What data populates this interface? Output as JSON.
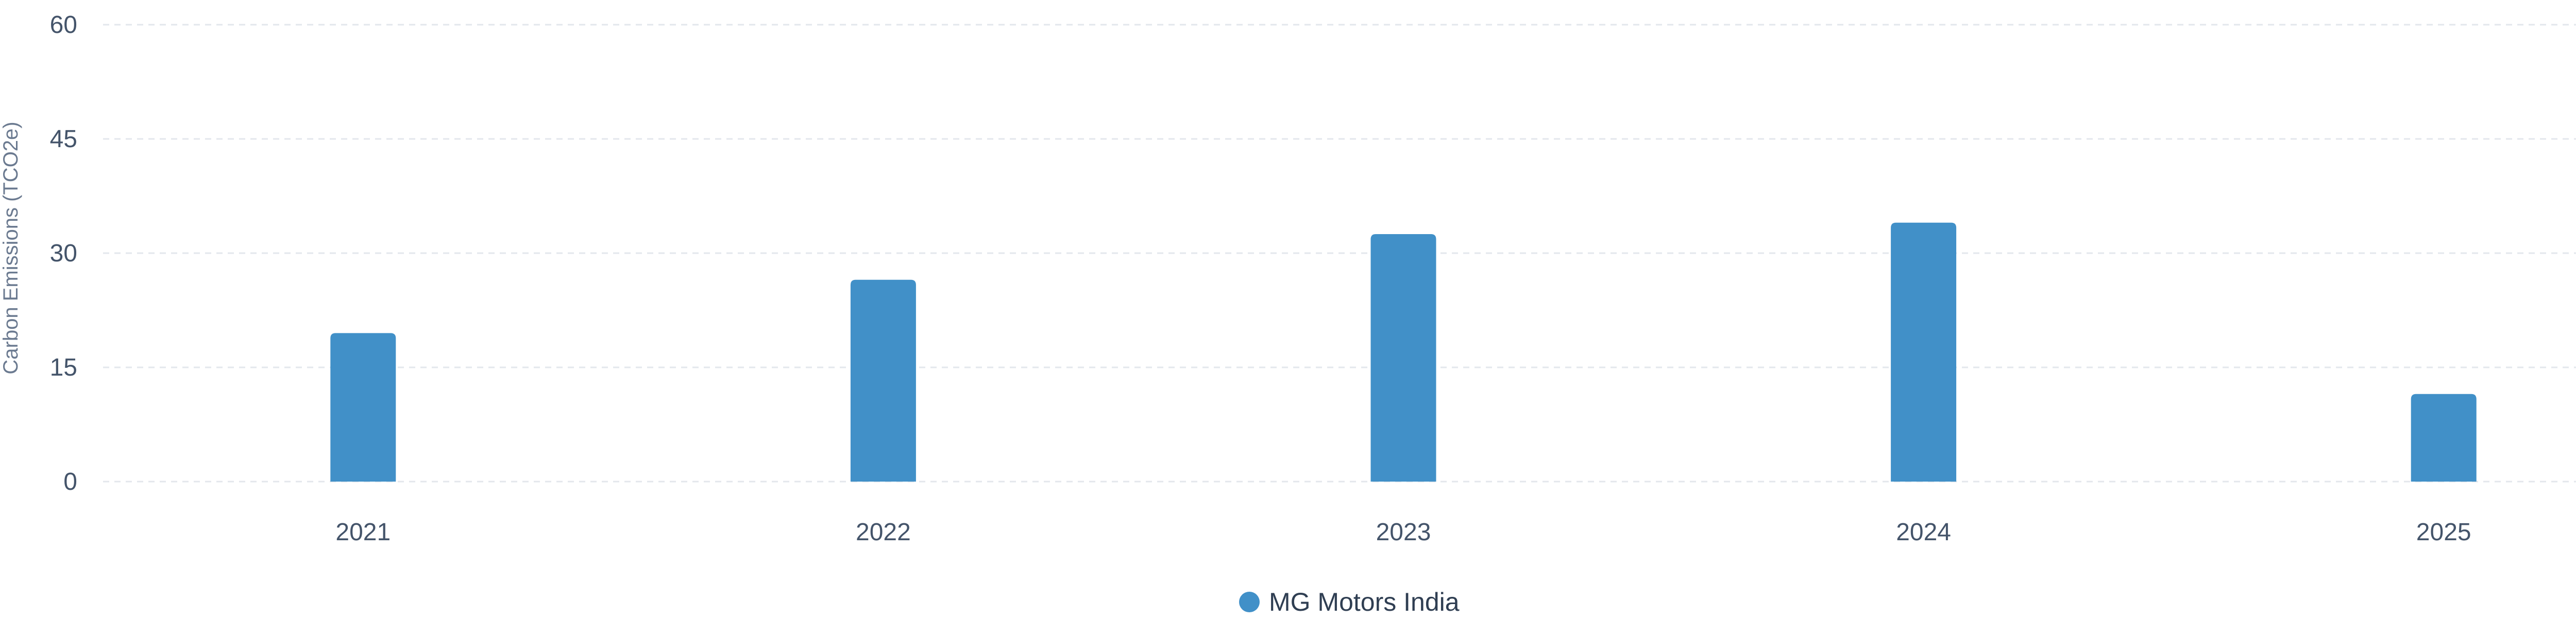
{
  "chart_data": {
    "type": "bar",
    "title": "",
    "xlabel": "",
    "ylabel": "Carbon Emissions (TCO2e)",
    "categories": [
      "2021",
      "2022",
      "2023",
      "2024",
      "2025"
    ],
    "series": [
      {
        "name": "MG Motors India",
        "values": [
          19.5,
          26.5,
          32.5,
          34,
          11.5
        ],
        "color": "#4190c8"
      }
    ],
    "ylim": [
      0,
      60
    ],
    "yticks": [
      "0",
      "15",
      "30",
      "45",
      "60"
    ],
    "grid": true,
    "legend": "bottom-center"
  }
}
